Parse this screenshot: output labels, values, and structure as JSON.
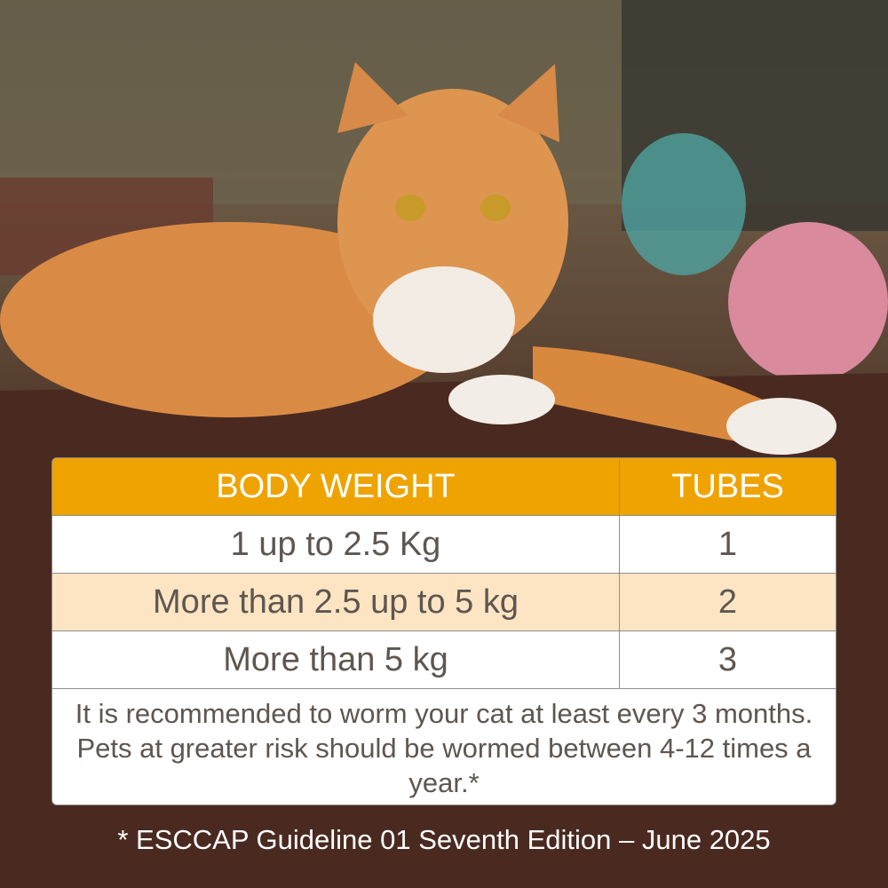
{
  "table": {
    "headers": [
      "BODY WEIGHT",
      "TUBES"
    ],
    "rows": [
      {
        "weight": "1 up to 2.5 Kg",
        "tubes": "1"
      },
      {
        "weight": "More than 2.5 up to 5 kg",
        "tubes": "2"
      },
      {
        "weight": "More than 5 kg",
        "tubes": "3"
      }
    ],
    "note": "It is recommended to worm your cat at least every 3 months. Pets at greater risk should be wormed between 4-12 times a year.*"
  },
  "footnote": "* ESCCAP Guideline 01 Seventh Edition – June 2025",
  "colors": {
    "header": "#efa300",
    "alt_row": "#fde5c3",
    "text": "#5e5650"
  }
}
